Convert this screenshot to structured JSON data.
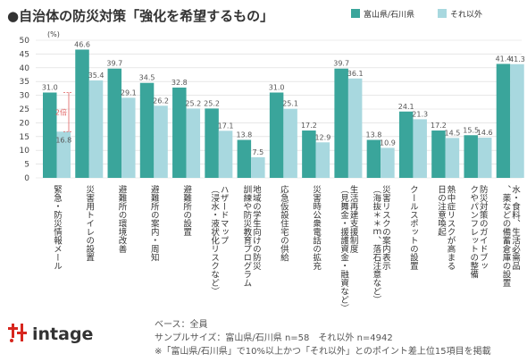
{
  "chart_data": {
    "type": "bar",
    "title": "●自治体の防災対策「強化を希望するもの」",
    "ylabel": "(%)",
    "ylim": [
      0,
      50
    ],
    "yticks": [
      0,
      5,
      10,
      15,
      20,
      25,
      30,
      35,
      40,
      45,
      50
    ],
    "grid": true,
    "legend_position": "top-right",
    "categories": [
      "緊急・防災情報メール",
      "災害用トイレの設置",
      "避難所の環境改善",
      "避難所の案内・周知",
      "避難所の設置",
      "ハザードマップ（浸水・液状化リスクなど）",
      "地域の学生向けの防災訓練や防災教育プログラム",
      "応急仮設住宅の供給",
      "災害時公衆電話の拡充",
      "生活再建支援制度（見舞金・援護資金・融資など）",
      "災害リスクの案内表示（海抜＊＊ｍ、落石注意など）",
      "クールスポットの設置",
      "熱中症リスクが高まる日の注意喚起",
      "防災対策のガイドブックやパンフレットの整備",
      "水・食料、生活必需品、薬などの備蓄倉庫の設置"
    ],
    "series": [
      {
        "name": "富山県/石川県",
        "color": "#3aa59b",
        "values": [
          31.0,
          46.6,
          39.7,
          34.5,
          32.8,
          25.2,
          13.8,
          31.0,
          17.2,
          39.7,
          13.8,
          24.1,
          17.2,
          15.5,
          41.4
        ]
      },
      {
        "name": "それ以外",
        "color": "#a8d8df",
        "values": [
          16.8,
          35.4,
          29.1,
          26.2,
          25.2,
          17.1,
          7.5,
          25.1,
          12.9,
          36.1,
          10.9,
          21.3,
          14.5,
          14.6,
          41.3
        ]
      }
    ],
    "value_labels": [
      [
        "31.0",
        "16.8"
      ],
      [
        "46.6",
        "35.4"
      ],
      [
        "39.7",
        "29.1"
      ],
      [
        "34.5",
        "26.2"
      ],
      [
        "32.8",
        "25.2"
      ],
      [
        "25.2",
        "17.1"
      ],
      [
        "13.8",
        "7.5"
      ],
      [
        "31.0",
        "25.1"
      ],
      [
        "17.2",
        "12.9"
      ],
      [
        "39.7",
        "36.1"
      ],
      [
        "13.8",
        "10.9"
      ],
      [
        "24.1",
        "21.3"
      ],
      [
        "17.2",
        "14.5"
      ],
      [
        "15.5",
        "14.6"
      ],
      [
        "41.4",
        "41.3"
      ]
    ],
    "annotation": "2倍"
  },
  "footer": {
    "base": "ベース：全員",
    "sample": "サンプルサイズ：富山県/石川県 n=58　それ以外 n=4942",
    "note": "※「富山県/石川県」で10%以上かつ「それ以外」とのポイント差上位15項目を掲載"
  },
  "logo": {
    "text": "intage"
  },
  "colors": {
    "grid": "#d9d9d9",
    "annotation": "#e06060",
    "logo_red": "#d7261e"
  }
}
